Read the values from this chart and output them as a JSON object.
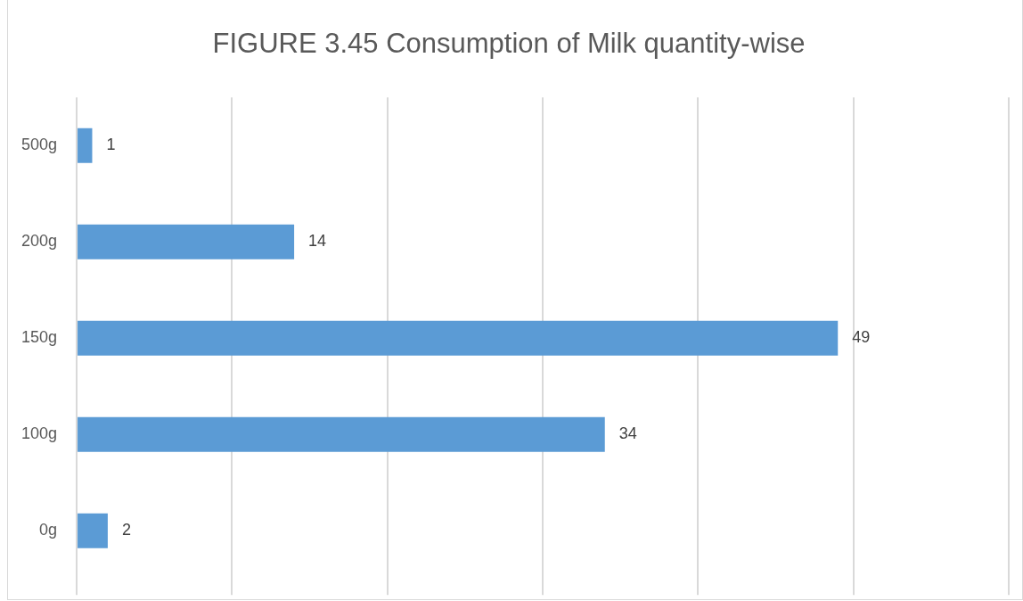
{
  "chart_data": {
    "type": "bar",
    "orientation": "horizontal",
    "title": "FIGURE 3.45 Consumption of Milk quantity-wise",
    "categories": [
      "500g",
      "200g",
      "150g",
      "100g",
      "0g"
    ],
    "values": [
      1,
      14,
      49,
      34,
      2
    ],
    "color": "#5b9bd5",
    "xlim": [
      0,
      60
    ],
    "xticks": [
      {
        "value": 0,
        "label": null
      },
      {
        "value": 10,
        "label": null
      },
      {
        "value": 20,
        "label": null
      },
      {
        "value": 30,
        "label": null
      },
      {
        "value": 40,
        "label": null
      },
      {
        "value": 50,
        "label": null
      },
      {
        "value": 60,
        "label": null
      }
    ],
    "tick_labels": "y",
    "grid": "x",
    "data_labels": true,
    "legend": false
  }
}
